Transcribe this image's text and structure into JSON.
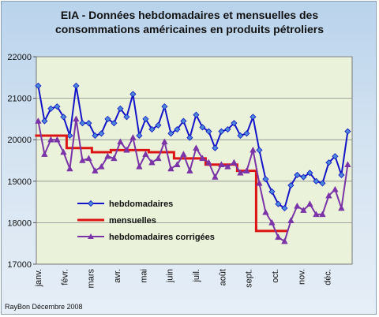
{
  "title_line1": "EIA - Données hebdomadaires  et mensuelles des",
  "title_line2": "consommations  américaines en produits pétroliers",
  "credit": "RayBon Décembre 2008",
  "colors": {
    "plot_bg": "#eaf2d9",
    "grid": "#8a8a8a",
    "hebdomadaires": "#1414c8",
    "mensuelles": "#dc1414",
    "corrigees": "#7a34a8"
  },
  "chart_data": {
    "type": "line",
    "ylim": [
      17000,
      22000
    ],
    "yticks": [
      17000,
      18000,
      19000,
      20000,
      21000,
      22000
    ],
    "ytick_labels": [
      "17000",
      "18000",
      "19000",
      "20000",
      "21000",
      "22000"
    ],
    "grid": true,
    "legend_position": "center-left",
    "month_labels": [
      "janv.",
      "févr.",
      "mars",
      "avr.",
      "mai",
      "juin",
      "juil.",
      "août",
      "sept.",
      "oct.",
      "nov.",
      "déc."
    ],
    "n_weeks": 50,
    "series": [
      {
        "name": "hebdomadaires",
        "marker": "diamond",
        "values": [
          21300,
          20450,
          20750,
          20800,
          20550,
          20100,
          21300,
          20400,
          20400,
          20100,
          20150,
          20500,
          20400,
          20750,
          20550,
          21100,
          20100,
          20500,
          20250,
          20350,
          20800,
          20150,
          20250,
          20450,
          20050,
          20600,
          20300,
          20200,
          19800,
          20200,
          20250,
          20400,
          20100,
          20150,
          20550,
          19750,
          19050,
          18750,
          18450,
          18350,
          18900,
          19150,
          19100,
          19200,
          19000,
          18950,
          19450,
          19600,
          19150,
          20200
        ]
      },
      {
        "name": "mensuelles",
        "marker": "none",
        "step": true,
        "values": [
          20100,
          20100,
          20100,
          20100,
          20100,
          19800,
          19800,
          19800,
          19800,
          19700,
          19700,
          19700,
          19750,
          19750,
          19750,
          19750,
          19750,
          19750,
          19700,
          19700,
          19700,
          19700,
          19550,
          19550,
          19550,
          19550,
          19550,
          19400,
          19400,
          19400,
          19400,
          19400,
          19250,
          19250,
          19250,
          17800,
          17800,
          17800,
          17800,
          17800
        ]
      },
      {
        "name": "hebdomadaires corrigées",
        "marker": "triangle",
        "values": [
          20450,
          19650,
          20000,
          20000,
          19700,
          19300,
          20500,
          19500,
          19550,
          19250,
          19350,
          19600,
          19550,
          19950,
          19750,
          20050,
          19350,
          19650,
          19450,
          19550,
          19950,
          19300,
          19400,
          19650,
          19250,
          19800,
          19550,
          19450,
          19100,
          19400,
          19350,
          19450,
          19200,
          19250,
          19750,
          18950,
          18250,
          18000,
          17650,
          17550,
          18050,
          18400,
          18300,
          18450,
          18200,
          18200,
          18650,
          18800,
          18350,
          19400
        ]
      }
    ]
  }
}
